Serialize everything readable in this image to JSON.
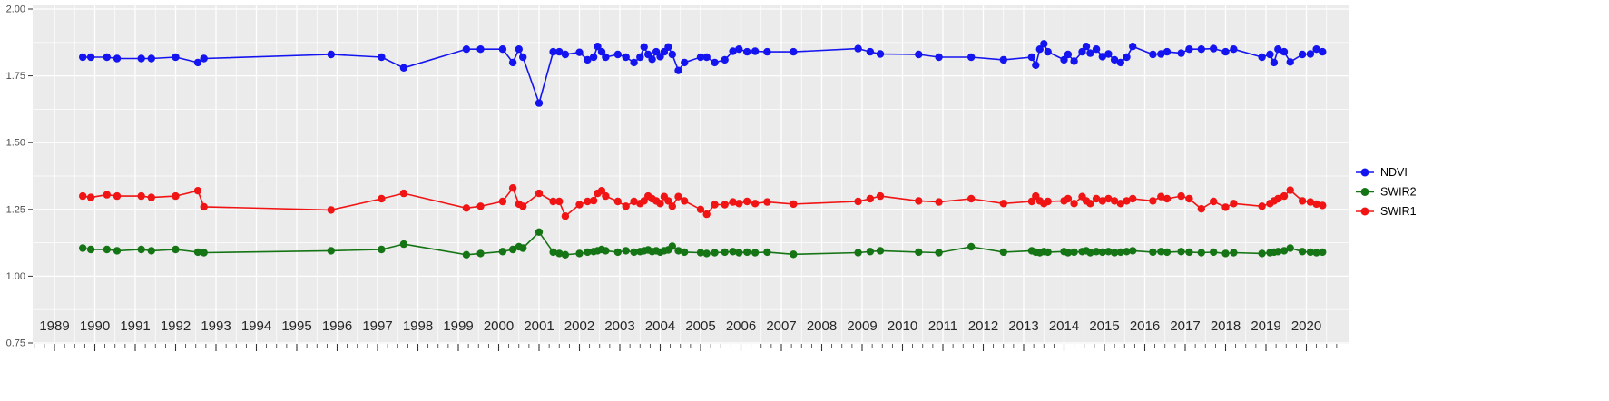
{
  "page": {
    "background": "#ffffff"
  },
  "chart_data": {
    "type": "line",
    "title": "",
    "xlabel": "",
    "ylabel": "",
    "panel_bg": "#ebebeb",
    "grid_color": "#ffffff",
    "axis_text_color": "#4d4d4d",
    "x_tick_color": "#333333",
    "legend_position": "right",
    "xlim": [
      1988.45,
      2021.05
    ],
    "ylim": [
      0.75,
      2.0
    ],
    "y_ticks": [
      0.75,
      1.0,
      1.25,
      1.5,
      1.75,
      2.0
    ],
    "y_tick_labels": [
      "0.75",
      "1.00",
      "1.25",
      "1.50",
      "1.75",
      "2.00"
    ],
    "x_ticks": [
      1989,
      1990,
      1991,
      1992,
      1993,
      1994,
      1995,
      1996,
      1997,
      1998,
      1999,
      2000,
      2001,
      2002,
      2003,
      2004,
      2005,
      2006,
      2007,
      2008,
      2009,
      2010,
      2011,
      2012,
      2013,
      2014,
      2015,
      2016,
      2017,
      2018,
      2019,
      2020
    ],
    "x": [
      1989.7,
      1989.9,
      1990.3,
      1990.55,
      1991.15,
      1991.4,
      1992.0,
      1992.55,
      1992.7,
      1995.85,
      1997.1,
      1997.65,
      1999.2,
      1999.55,
      2000.1,
      2000.35,
      2000.5,
      2000.6,
      2001.0,
      2001.35,
      2001.5,
      2001.65,
      2002.0,
      2002.2,
      2002.35,
      2002.45,
      2002.55,
      2002.65,
      2002.95,
      2003.15,
      2003.35,
      2003.5,
      2003.6,
      2003.7,
      2003.8,
      2003.9,
      2004.0,
      2004.1,
      2004.2,
      2004.3,
      2004.45,
      2004.6,
      2005.0,
      2005.15,
      2005.35,
      2005.6,
      2005.8,
      2005.95,
      2006.15,
      2006.35,
      2006.65,
      2007.3,
      2008.9,
      2009.2,
      2009.45,
      2010.4,
      2010.9,
      2011.7,
      2012.5,
      2013.2,
      2013.3,
      2013.4,
      2013.5,
      2013.6,
      2014.0,
      2014.1,
      2014.25,
      2014.45,
      2014.55,
      2014.65,
      2014.8,
      2014.95,
      2015.1,
      2015.25,
      2015.4,
      2015.55,
      2015.7,
      2016.2,
      2016.4,
      2016.55,
      2016.9,
      2017.1,
      2017.4,
      2017.7,
      2018.0,
      2018.2,
      2018.9,
      2019.1,
      2019.2,
      2019.3,
      2019.45,
      2019.6,
      2019.9,
      2020.1,
      2020.25,
      2020.4
    ],
    "series": [
      {
        "name": "NDVI",
        "color": "#1414f0",
        "values": [
          1.82,
          1.82,
          1.82,
          1.815,
          1.815,
          1.815,
          1.82,
          1.8,
          1.815,
          1.83,
          1.82,
          1.78,
          1.85,
          1.85,
          1.85,
          1.8,
          1.85,
          1.82,
          1.648,
          1.84,
          1.84,
          1.83,
          1.838,
          1.81,
          1.82,
          1.86,
          1.84,
          1.82,
          1.83,
          1.82,
          1.8,
          1.82,
          1.858,
          1.83,
          1.812,
          1.84,
          1.822,
          1.84,
          1.858,
          1.83,
          1.77,
          1.8,
          1.82,
          1.82,
          1.8,
          1.81,
          1.842,
          1.85,
          1.84,
          1.842,
          1.84,
          1.84,
          1.852,
          1.84,
          1.832,
          1.83,
          1.82,
          1.82,
          1.81,
          1.82,
          1.79,
          1.85,
          1.87,
          1.84,
          1.81,
          1.83,
          1.805,
          1.84,
          1.86,
          1.835,
          1.85,
          1.822,
          1.832,
          1.81,
          1.8,
          1.82,
          1.86,
          1.83,
          1.832,
          1.84,
          1.835,
          1.85,
          1.85,
          1.852,
          1.84,
          1.85,
          1.82,
          1.83,
          1.8,
          1.85,
          1.84,
          1.802,
          1.83,
          1.832,
          1.85,
          1.84
        ]
      },
      {
        "name": "SWIR2",
        "color": "#157515",
        "values": [
          1.105,
          1.1,
          1.1,
          1.095,
          1.1,
          1.095,
          1.1,
          1.09,
          1.088,
          1.095,
          1.1,
          1.12,
          1.08,
          1.085,
          1.092,
          1.1,
          1.11,
          1.105,
          1.165,
          1.09,
          1.085,
          1.08,
          1.085,
          1.09,
          1.092,
          1.095,
          1.1,
          1.095,
          1.09,
          1.095,
          1.09,
          1.092,
          1.095,
          1.098,
          1.092,
          1.095,
          1.09,
          1.095,
          1.098,
          1.112,
          1.095,
          1.09,
          1.088,
          1.085,
          1.088,
          1.09,
          1.092,
          1.088,
          1.09,
          1.088,
          1.09,
          1.082,
          1.088,
          1.092,
          1.095,
          1.09,
          1.088,
          1.11,
          1.09,
          1.095,
          1.09,
          1.088,
          1.092,
          1.09,
          1.092,
          1.088,
          1.09,
          1.092,
          1.095,
          1.088,
          1.092,
          1.09,
          1.092,
          1.088,
          1.09,
          1.092,
          1.095,
          1.09,
          1.092,
          1.09,
          1.092,
          1.09,
          1.088,
          1.09,
          1.085,
          1.088,
          1.085,
          1.088,
          1.09,
          1.092,
          1.095,
          1.105,
          1.092,
          1.09,
          1.088,
          1.09
        ]
      },
      {
        "name": "SWIR1",
        "color": "#f01414",
        "values": [
          1.3,
          1.295,
          1.305,
          1.3,
          1.3,
          1.295,
          1.3,
          1.32,
          1.26,
          1.248,
          1.29,
          1.31,
          1.255,
          1.262,
          1.28,
          1.33,
          1.27,
          1.262,
          1.31,
          1.28,
          1.28,
          1.225,
          1.268,
          1.28,
          1.283,
          1.31,
          1.32,
          1.3,
          1.28,
          1.262,
          1.28,
          1.272,
          1.282,
          1.3,
          1.29,
          1.282,
          1.272,
          1.298,
          1.282,
          1.262,
          1.298,
          1.282,
          1.25,
          1.232,
          1.268,
          1.268,
          1.278,
          1.272,
          1.28,
          1.272,
          1.278,
          1.27,
          1.28,
          1.29,
          1.3,
          1.282,
          1.278,
          1.29,
          1.272,
          1.28,
          1.3,
          1.282,
          1.272,
          1.28,
          1.282,
          1.29,
          1.272,
          1.298,
          1.282,
          1.272,
          1.29,
          1.282,
          1.29,
          1.282,
          1.272,
          1.282,
          1.29,
          1.282,
          1.298,
          1.29,
          1.3,
          1.29,
          1.252,
          1.28,
          1.258,
          1.272,
          1.262,
          1.272,
          1.282,
          1.29,
          1.3,
          1.322,
          1.282,
          1.278,
          1.27,
          1.265
        ]
      }
    ],
    "legend_entries": [
      "NDVI",
      "SWIR2",
      "SWIR1"
    ]
  }
}
